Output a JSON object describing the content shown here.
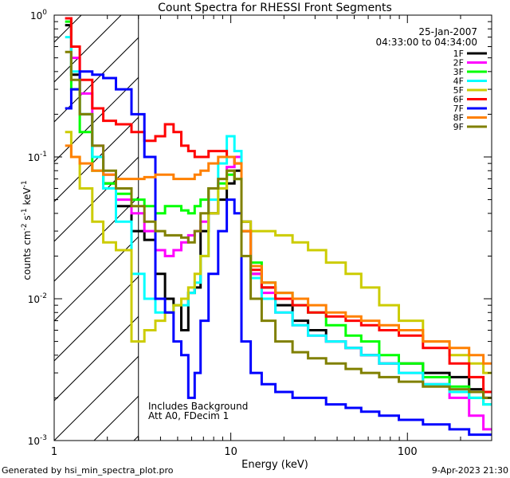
{
  "chart_data": {
    "type": "line",
    "title": "Count Spectra for RHESSI Front Segments",
    "xlabel": "Energy (keV)",
    "ylabel_main": "counts cm",
    "ylabel_exp1": "-2",
    "ylabel_mid": " s",
    "ylabel_exp2": "-1",
    "ylabel_end": " keV",
    "ylabel_exp3": "-1",
    "x_scale": "log",
    "y_scale": "log",
    "xlim": [
      1.0,
      300.0
    ],
    "ylim": [
      0.001,
      1.0
    ],
    "x_ticks": [
      {
        "value": 1,
        "label": "1"
      },
      {
        "value": 10,
        "label": "10"
      },
      {
        "value": 100,
        "label": "100"
      }
    ],
    "y_ticks": [
      {
        "value": 1,
        "base": "10",
        "exp": "0"
      },
      {
        "value": 0.1,
        "base": "10",
        "exp": "-1"
      },
      {
        "value": 0.01,
        "base": "10",
        "exp": "-2"
      },
      {
        "value": 0.001,
        "base": "10",
        "exp": "-3"
      }
    ],
    "shaded_region": {
      "x_min": 1.0,
      "x_max": 3.0,
      "style": "diagonal hatch (attenuator region)"
    },
    "date": "25-Jan-2007",
    "time_range": "04:33:00 to 04:34:00",
    "annotation_line1": "Includes Background",
    "annotation_line2": "Att A0, FDecim 1",
    "legend_position": "top-right",
    "footer_left": "Generated by hsi_min_spectra_plot.pro",
    "footer_right": "9-Apr-2023 21:30",
    "series": [
      {
        "name": "1F",
        "color": "#000000",
        "x": [
          1.2,
          1.3,
          1.5,
          1.8,
          2.0,
          2.5,
          3.0,
          3.5,
          4.0,
          4.5,
          5.0,
          5.5,
          6.0,
          6.5,
          7.0,
          8.0,
          9.0,
          10.0,
          11.0,
          12.0,
          14.0,
          16.0,
          20.0,
          25.0,
          30.0,
          40.0,
          50.0,
          60.0,
          80.0,
          100.0,
          150.0,
          200.0,
          250.0,
          290.0
        ],
        "values": [
          0.85,
          0.38,
          0.2,
          0.1,
          0.065,
          0.045,
          0.03,
          0.026,
          0.015,
          0.01,
          0.009,
          0.006,
          0.011,
          0.012,
          0.03,
          0.04,
          0.05,
          0.065,
          0.08,
          0.035,
          0.015,
          0.012,
          0.009,
          0.007,
          0.006,
          0.005,
          0.0045,
          0.004,
          0.0035,
          0.0035,
          0.003,
          0.0028,
          0.0023,
          0.002
        ]
      },
      {
        "name": "2F",
        "color": "#ff00ff",
        "x": [
          1.2,
          1.3,
          1.5,
          1.8,
          2.0,
          2.5,
          3.0,
          3.5,
          4.0,
          4.5,
          5.0,
          5.5,
          6.0,
          6.5,
          7.0,
          8.0,
          9.0,
          10.0,
          11.0,
          12.0,
          14.0,
          16.0,
          20.0,
          25.0,
          30.0,
          40.0,
          50.0,
          60.0,
          80.0,
          100.0,
          150.0,
          200.0,
          250.0,
          290.0
        ],
        "values": [
          0.95,
          0.5,
          0.28,
          0.12,
          0.075,
          0.05,
          0.04,
          0.03,
          0.022,
          0.02,
          0.022,
          0.025,
          0.028,
          0.03,
          0.035,
          0.06,
          0.07,
          0.085,
          0.1,
          0.03,
          0.015,
          0.011,
          0.008,
          0.0065,
          0.0055,
          0.005,
          0.0045,
          0.004,
          0.0035,
          0.003,
          0.0025,
          0.002,
          0.0015,
          0.0012
        ]
      },
      {
        "name": "3F",
        "color": "#00ff00",
        "x": [
          1.2,
          1.3,
          1.5,
          1.8,
          2.0,
          2.5,
          3.0,
          3.5,
          4.0,
          4.5,
          5.0,
          5.5,
          6.0,
          6.5,
          7.0,
          8.0,
          9.0,
          10.0,
          11.0,
          12.0,
          14.0,
          16.0,
          20.0,
          25.0,
          30.0,
          40.0,
          50.0,
          60.0,
          80.0,
          100.0,
          150.0,
          200.0,
          250.0,
          290.0
        ],
        "values": [
          0.9,
          0.3,
          0.15,
          0.08,
          0.065,
          0.055,
          0.05,
          0.045,
          0.04,
          0.045,
          0.045,
          0.042,
          0.04,
          0.045,
          0.05,
          0.06,
          0.065,
          0.075,
          0.07,
          0.03,
          0.018,
          0.013,
          0.011,
          0.009,
          0.008,
          0.0065,
          0.0055,
          0.005,
          0.004,
          0.0035,
          0.0028,
          0.0024,
          0.002,
          0.0018
        ]
      },
      {
        "name": "4F",
        "color": "#00ffff",
        "x": [
          1.2,
          1.3,
          1.5,
          1.8,
          2.0,
          2.5,
          3.0,
          3.5,
          4.0,
          4.5,
          5.0,
          5.5,
          6.0,
          6.5,
          7.0,
          8.0,
          9.0,
          10.0,
          11.0,
          12.0,
          14.0,
          16.0,
          20.0,
          25.0,
          30.0,
          40.0,
          50.0,
          60.0,
          80.0,
          100.0,
          150.0,
          200.0,
          250.0,
          290.0
        ],
        "values": [
          0.7,
          0.4,
          0.2,
          0.1,
          0.06,
          0.035,
          0.015,
          0.01,
          0.008,
          0.008,
          0.009,
          0.009,
          0.011,
          0.013,
          0.02,
          0.05,
          0.09,
          0.14,
          0.11,
          0.03,
          0.014,
          0.01,
          0.008,
          0.0065,
          0.0055,
          0.005,
          0.0045,
          0.004,
          0.0035,
          0.003,
          0.0025,
          0.0022,
          0.002,
          0.0018
        ]
      },
      {
        "name": "5F",
        "color": "#cccc00",
        "x": [
          1.2,
          1.3,
          1.5,
          1.8,
          2.0,
          2.5,
          3.0,
          3.5,
          4.0,
          4.5,
          5.0,
          5.5,
          6.0,
          6.5,
          7.0,
          8.0,
          9.0,
          10.0,
          11.0,
          12.0,
          14.0,
          16.0,
          20.0,
          25.0,
          30.0,
          40.0,
          50.0,
          60.0,
          80.0,
          100.0,
          150.0,
          200.0,
          250.0,
          290.0
        ],
        "values": [
          0.15,
          0.1,
          0.06,
          0.035,
          0.025,
          0.022,
          0.005,
          0.006,
          0.007,
          0.008,
          0.009,
          0.01,
          0.012,
          0.015,
          0.02,
          0.04,
          0.06,
          0.08,
          0.07,
          0.035,
          0.03,
          0.03,
          0.028,
          0.025,
          0.022,
          0.018,
          0.015,
          0.012,
          0.009,
          0.007,
          0.005,
          0.004,
          0.0035,
          0.003
        ]
      },
      {
        "name": "6F",
        "color": "#ff0000",
        "x": [
          1.2,
          1.3,
          1.5,
          1.8,
          2.0,
          2.5,
          3.0,
          3.5,
          4.0,
          4.5,
          5.0,
          5.5,
          6.0,
          6.5,
          7.0,
          8.0,
          9.0,
          10.0,
          11.0,
          12.0,
          14.0,
          16.0,
          20.0,
          25.0,
          30.0,
          40.0,
          50.0,
          60.0,
          80.0,
          100.0,
          150.0,
          200.0,
          250.0,
          290.0
        ],
        "values": [
          0.95,
          0.6,
          0.35,
          0.22,
          0.18,
          0.17,
          0.15,
          0.13,
          0.14,
          0.17,
          0.15,
          0.12,
          0.11,
          0.1,
          0.1,
          0.11,
          0.11,
          0.1,
          0.09,
          0.03,
          0.016,
          0.012,
          0.01,
          0.009,
          0.008,
          0.0075,
          0.007,
          0.0065,
          0.006,
          0.0055,
          0.0045,
          0.0035,
          0.0028,
          0.0022
        ]
      },
      {
        "name": "7F",
        "color": "#0000ff",
        "x": [
          1.2,
          1.3,
          1.5,
          1.8,
          2.0,
          2.5,
          3.0,
          3.5,
          4.0,
          4.5,
          5.0,
          5.5,
          6.0,
          6.5,
          7.0,
          8.0,
          9.0,
          10.0,
          11.0,
          12.0,
          14.0,
          16.0,
          20.0,
          25.0,
          30.0,
          40.0,
          50.0,
          60.0,
          80.0,
          100.0,
          150.0,
          200.0,
          250.0,
          290.0
        ],
        "values": [
          0.22,
          0.3,
          0.4,
          0.38,
          0.36,
          0.3,
          0.2,
          0.1,
          0.01,
          0.008,
          0.005,
          0.004,
          0.002,
          0.003,
          0.007,
          0.015,
          0.03,
          0.05,
          0.04,
          0.005,
          0.003,
          0.0025,
          0.0022,
          0.002,
          0.002,
          0.0018,
          0.0017,
          0.0016,
          0.0015,
          0.0014,
          0.0013,
          0.0012,
          0.0011,
          0.0011
        ]
      },
      {
        "name": "8F",
        "color": "#ff8000",
        "x": [
          1.2,
          1.3,
          1.5,
          1.8,
          2.0,
          2.5,
          3.0,
          3.5,
          4.0,
          4.5,
          5.0,
          5.5,
          6.0,
          6.5,
          7.0,
          8.0,
          9.0,
          10.0,
          11.0,
          12.0,
          14.0,
          16.0,
          20.0,
          25.0,
          30.0,
          40.0,
          50.0,
          60.0,
          80.0,
          100.0,
          150.0,
          200.0,
          250.0,
          290.0
        ],
        "values": [
          0.12,
          0.1,
          0.09,
          0.08,
          0.075,
          0.07,
          0.07,
          0.072,
          0.075,
          0.075,
          0.07,
          0.07,
          0.07,
          0.075,
          0.08,
          0.09,
          0.1,
          0.1,
          0.09,
          0.03,
          0.017,
          0.013,
          0.011,
          0.01,
          0.009,
          0.008,
          0.0075,
          0.007,
          0.0065,
          0.006,
          0.005,
          0.0045,
          0.004,
          0.0035
        ]
      },
      {
        "name": "9F",
        "color": "#808000",
        "x": [
          1.2,
          1.3,
          1.5,
          1.8,
          2.0,
          2.5,
          3.0,
          3.5,
          4.0,
          4.5,
          5.0,
          5.5,
          6.0,
          6.5,
          7.0,
          8.0,
          9.0,
          10.0,
          11.0,
          12.0,
          14.0,
          16.0,
          20.0,
          25.0,
          30.0,
          40.0,
          50.0,
          60.0,
          80.0,
          100.0,
          150.0,
          200.0,
          250.0,
          290.0
        ],
        "values": [
          0.55,
          0.35,
          0.2,
          0.12,
          0.08,
          0.06,
          0.045,
          0.035,
          0.03,
          0.028,
          0.028,
          0.027,
          0.025,
          0.03,
          0.04,
          0.06,
          0.07,
          0.08,
          0.07,
          0.02,
          0.01,
          0.007,
          0.005,
          0.0042,
          0.0038,
          0.0035,
          0.0032,
          0.003,
          0.0028,
          0.0026,
          0.0024,
          0.0023,
          0.0022,
          0.002
        ]
      }
    ]
  }
}
